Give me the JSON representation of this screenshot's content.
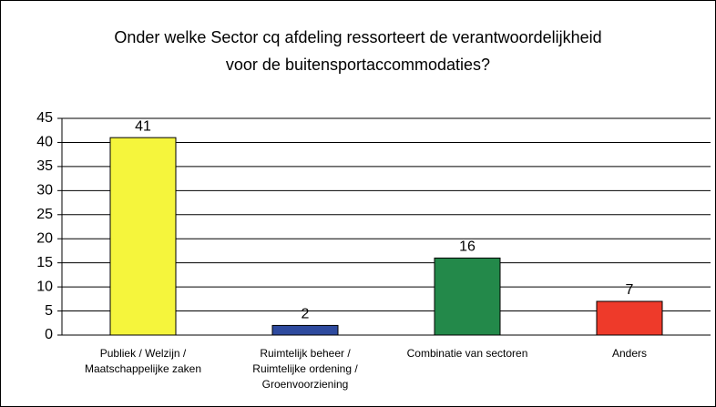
{
  "chart_data": {
    "type": "bar",
    "title": "Onder welke Sector cq afdeling ressorteert de verantwoordelijkheid voor de buitensportaccommodaties?",
    "categories": [
      "Publiek / Welzijn / Maatschappelijke zaken",
      "Ruimtelijk beheer / Ruimtelijke ordening / Groenvoorziening",
      "Combinatie van sectoren",
      "Anders"
    ],
    "values": [
      41,
      2,
      16,
      7
    ],
    "colors": [
      "#f5f53c",
      "#2e4a9e",
      "#23894a",
      "#ee3a2a"
    ],
    "ylim": [
      0,
      45
    ],
    "yticks": [
      0,
      5,
      10,
      15,
      20,
      25,
      30,
      35,
      40,
      45
    ],
    "grid": true
  }
}
